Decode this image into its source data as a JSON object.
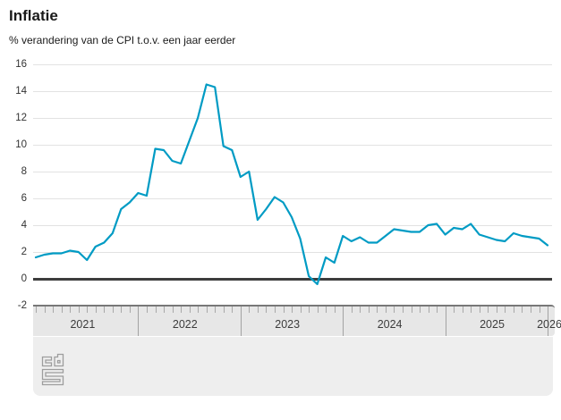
{
  "header": {
    "title": "Inflatie",
    "subtitle": "% verandering van de CPI t.o.v. een jaar eerder"
  },
  "colors": {
    "line": "#009bc4",
    "zero_line": "#3d3d3d",
    "grid": "#e2e2e2",
    "axis_band": "#e7e7e7",
    "footer_panel": "#eeeeee",
    "logo": "#9d9d9d"
  },
  "chart_data": {
    "type": "line",
    "title": "Inflatie",
    "subtitle": "% verandering van de CPI t.o.v. een jaar eerder",
    "unit": "%",
    "frequency": "monthly",
    "x_start": "2021-01",
    "x_end": "2026-01",
    "x_year_labels": [
      "2021",
      "2022",
      "2023",
      "2024",
      "2025",
      "2026"
    ],
    "yticks": [
      16,
      14,
      12,
      10,
      8,
      6,
      4,
      2,
      0,
      -2
    ],
    "ylim": [
      -2,
      16
    ],
    "grid": true,
    "legend": "none",
    "series": [
      {
        "name": "Inflatie (CPI, % t.o.v. een jaar eerder)",
        "values": [
          1.6,
          1.8,
          1.9,
          1.9,
          2.1,
          2.0,
          1.4,
          2.4,
          2.7,
          3.4,
          5.2,
          5.7,
          6.4,
          6.2,
          9.7,
          9.6,
          8.8,
          8.6,
          10.3,
          12.0,
          14.5,
          14.3,
          9.9,
          9.6,
          7.6,
          8.0,
          4.4,
          5.2,
          6.1,
          5.7,
          4.6,
          3.0,
          0.2,
          -0.4,
          1.6,
          1.2,
          3.2,
          2.8,
          3.1,
          2.7,
          2.7,
          3.2,
          3.7,
          3.6,
          3.5,
          3.5,
          4.0,
          4.1,
          3.3,
          3.8,
          3.7,
          4.1,
          3.3,
          3.1,
          2.9,
          2.8,
          3.4,
          3.2,
          3.1,
          3.0,
          2.5
        ]
      }
    ]
  },
  "footer": {
    "logo": "cbs-logo"
  }
}
